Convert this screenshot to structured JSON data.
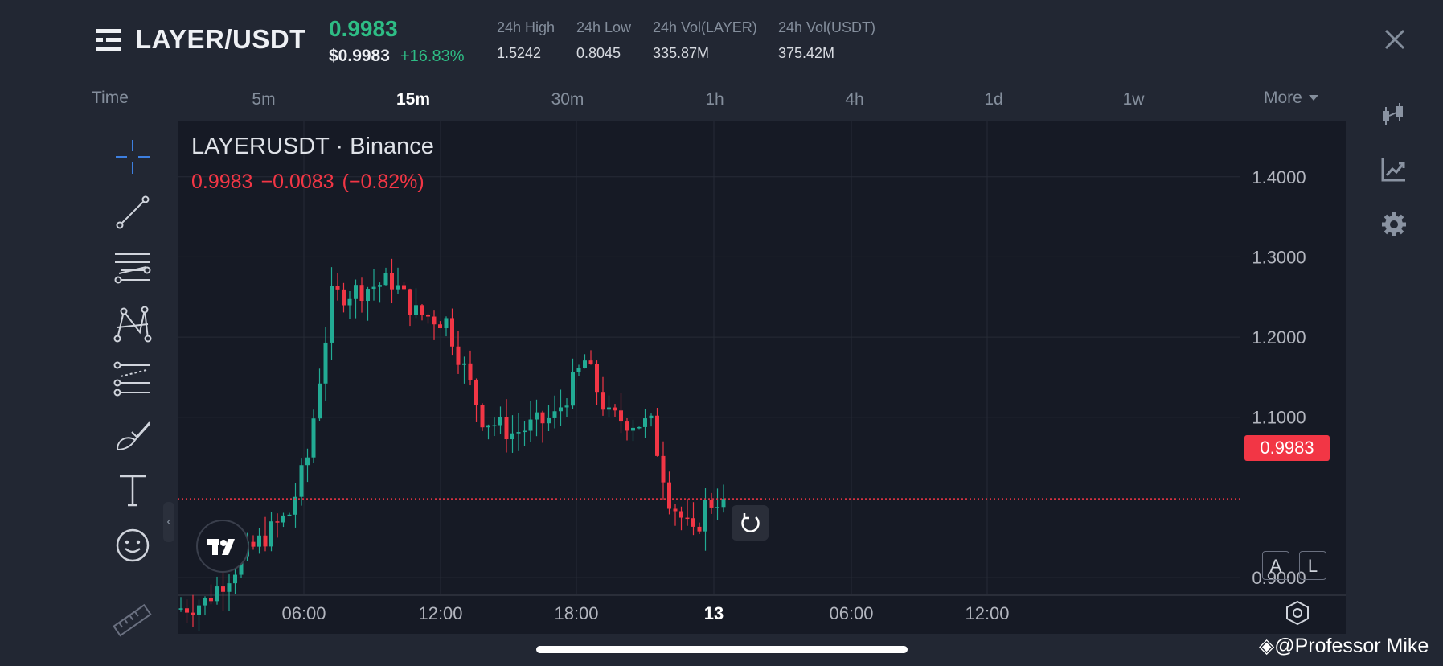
{
  "header": {
    "pair": "LAYER/USDT",
    "price": "0.9983",
    "price_usd": "$0.9983",
    "change_pct": "+16.83%",
    "stats": [
      {
        "label": "24h High",
        "value": "1.5242"
      },
      {
        "label": "24h Low",
        "value": "0.8045"
      },
      {
        "label": "24h Vol(LAYER)",
        "value": "335.87M"
      },
      {
        "label": "24h Vol(USDT)",
        "value": "375.42M"
      }
    ]
  },
  "intervals": {
    "time_label": "Time",
    "items": [
      "5m",
      "15m",
      "30m",
      "1h",
      "4h",
      "1d",
      "1w"
    ],
    "active": "15m",
    "more_label": "More"
  },
  "chart": {
    "symbol_title": "LAYERUSDT · Binance",
    "ohlc_price": "0.9983",
    "ohlc_change": "−0.0083",
    "ohlc_change_pct": "(−0.82%)",
    "current_price_tag": "0.9983",
    "scale_buttons": [
      "A",
      "L"
    ]
  },
  "colors": {
    "up": "#22ab94",
    "down": "#f23645",
    "background": "#161a25",
    "accent_green": "#2ebd85"
  },
  "chart_data": {
    "type": "candlestick",
    "symbol": "LAYERUSDT",
    "interval": "15m",
    "y_ticks": [
      "1.4000",
      "1.3000",
      "1.2000",
      "1.1000",
      "0.9000"
    ],
    "y_range": [
      0.88,
      1.47
    ],
    "x_ticks": [
      "06:00",
      "12:00",
      "18:00",
      "13",
      "06:00",
      "12:00"
    ],
    "x_tick_bold": [
      false,
      false,
      false,
      true,
      false,
      false
    ],
    "last_price": 0.9983,
    "open": 1.0,
    "close_target": 0.9983,
    "candle_count": 91,
    "waypoints": [
      {
        "i": 0,
        "p": 0.86
      },
      {
        "i": 5,
        "p": 0.87
      },
      {
        "i": 12,
        "p": 0.93
      },
      {
        "i": 19,
        "p": 0.98
      },
      {
        "i": 22,
        "p": 1.05
      },
      {
        "i": 26,
        "p": 1.25
      },
      {
        "i": 31,
        "p": 1.26
      },
      {
        "i": 36,
        "p": 1.27
      },
      {
        "i": 40,
        "p": 1.23
      },
      {
        "i": 45,
        "p": 1.22
      },
      {
        "i": 51,
        "p": 1.1
      },
      {
        "i": 56,
        "p": 1.08
      },
      {
        "i": 63,
        "p": 1.1
      },
      {
        "i": 68,
        "p": 1.17
      },
      {
        "i": 72,
        "p": 1.1
      },
      {
        "i": 79,
        "p": 1.09
      },
      {
        "i": 82,
        "p": 1.0
      },
      {
        "i": 86,
        "p": 0.95
      },
      {
        "i": 88,
        "p": 0.99
      },
      {
        "i": 90,
        "p": 0.9983
      }
    ]
  },
  "footer": {
    "watermark": "@Professor Mike"
  }
}
